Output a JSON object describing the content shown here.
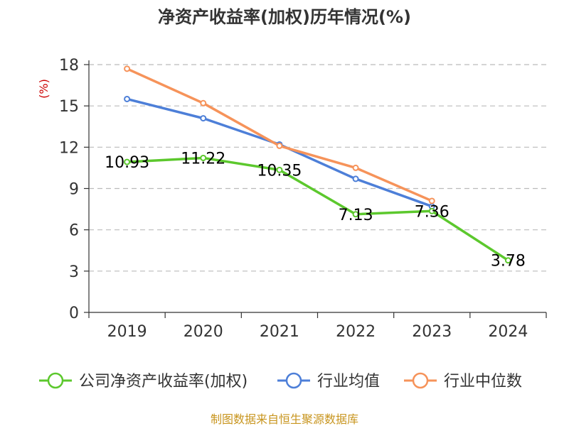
{
  "chart_data": {
    "type": "line",
    "title": "净资产收益率(加权)历年情况(%)",
    "ylabel": "(%)",
    "x": [
      "2019",
      "2020",
      "2021",
      "2022",
      "2023",
      "2024"
    ],
    "ylim": [
      0,
      18
    ],
    "yticks": [
      0,
      3,
      6,
      9,
      12,
      15,
      18
    ],
    "grid": true,
    "legend_position": "bottom",
    "series": [
      {
        "name": "公司净资产收益率(加权)",
        "color": "#5cc82d",
        "values": [
          10.93,
          11.22,
          10.35,
          7.13,
          7.36,
          3.78
        ],
        "labels": [
          "10.93",
          "11.22",
          "10.35",
          "7.13",
          "7.36",
          "3.78"
        ]
      },
      {
        "name": "行业均值",
        "color": "#4d7fd8",
        "values": [
          15.5,
          14.1,
          12.2,
          9.7,
          7.7,
          null
        ]
      },
      {
        "name": "行业中位数",
        "color": "#f6935a",
        "values": [
          17.7,
          15.2,
          12.1,
          10.5,
          8.1,
          null
        ]
      }
    ],
    "source": "制图数据来自恒生聚源数据库"
  }
}
